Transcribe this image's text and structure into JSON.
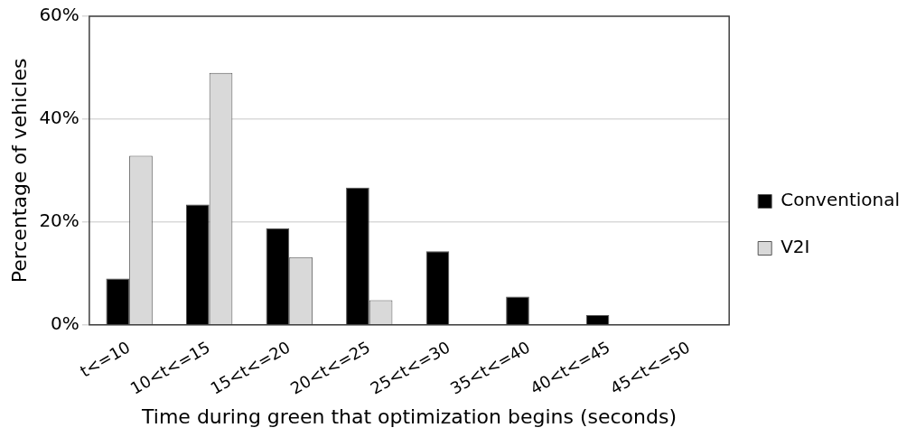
{
  "chart_data": {
    "type": "bar",
    "xlabel": "Time during green that optimization begins (seconds)",
    "ylabel": "Percentage of vehicles",
    "categories": [
      "t<=10",
      "10<t<=15",
      "15<t<=20",
      "20<t<=25",
      "25<t<=30",
      "35<t<=40",
      "40<t<=45",
      "45<t<=50"
    ],
    "series": [
      {
        "name": "Conventional",
        "color": "#000000",
        "values": [
          9.0,
          23.4,
          18.8,
          26.7,
          14.3,
          5.5,
          1.9,
          0
        ]
      },
      {
        "name": "V2I",
        "color": "#d9d9d9",
        "values": [
          32.9,
          49.0,
          13.2,
          4.8,
          0,
          0,
          0,
          0
        ]
      }
    ],
    "ylim": [
      0,
      60
    ],
    "yticks": [
      {
        "value": 0,
        "label": "0%"
      },
      {
        "value": 20,
        "label": "20%"
      },
      {
        "value": 40,
        "label": "40%"
      },
      {
        "value": 60,
        "label": "60%"
      }
    ],
    "grid": "y",
    "legend": "right"
  }
}
